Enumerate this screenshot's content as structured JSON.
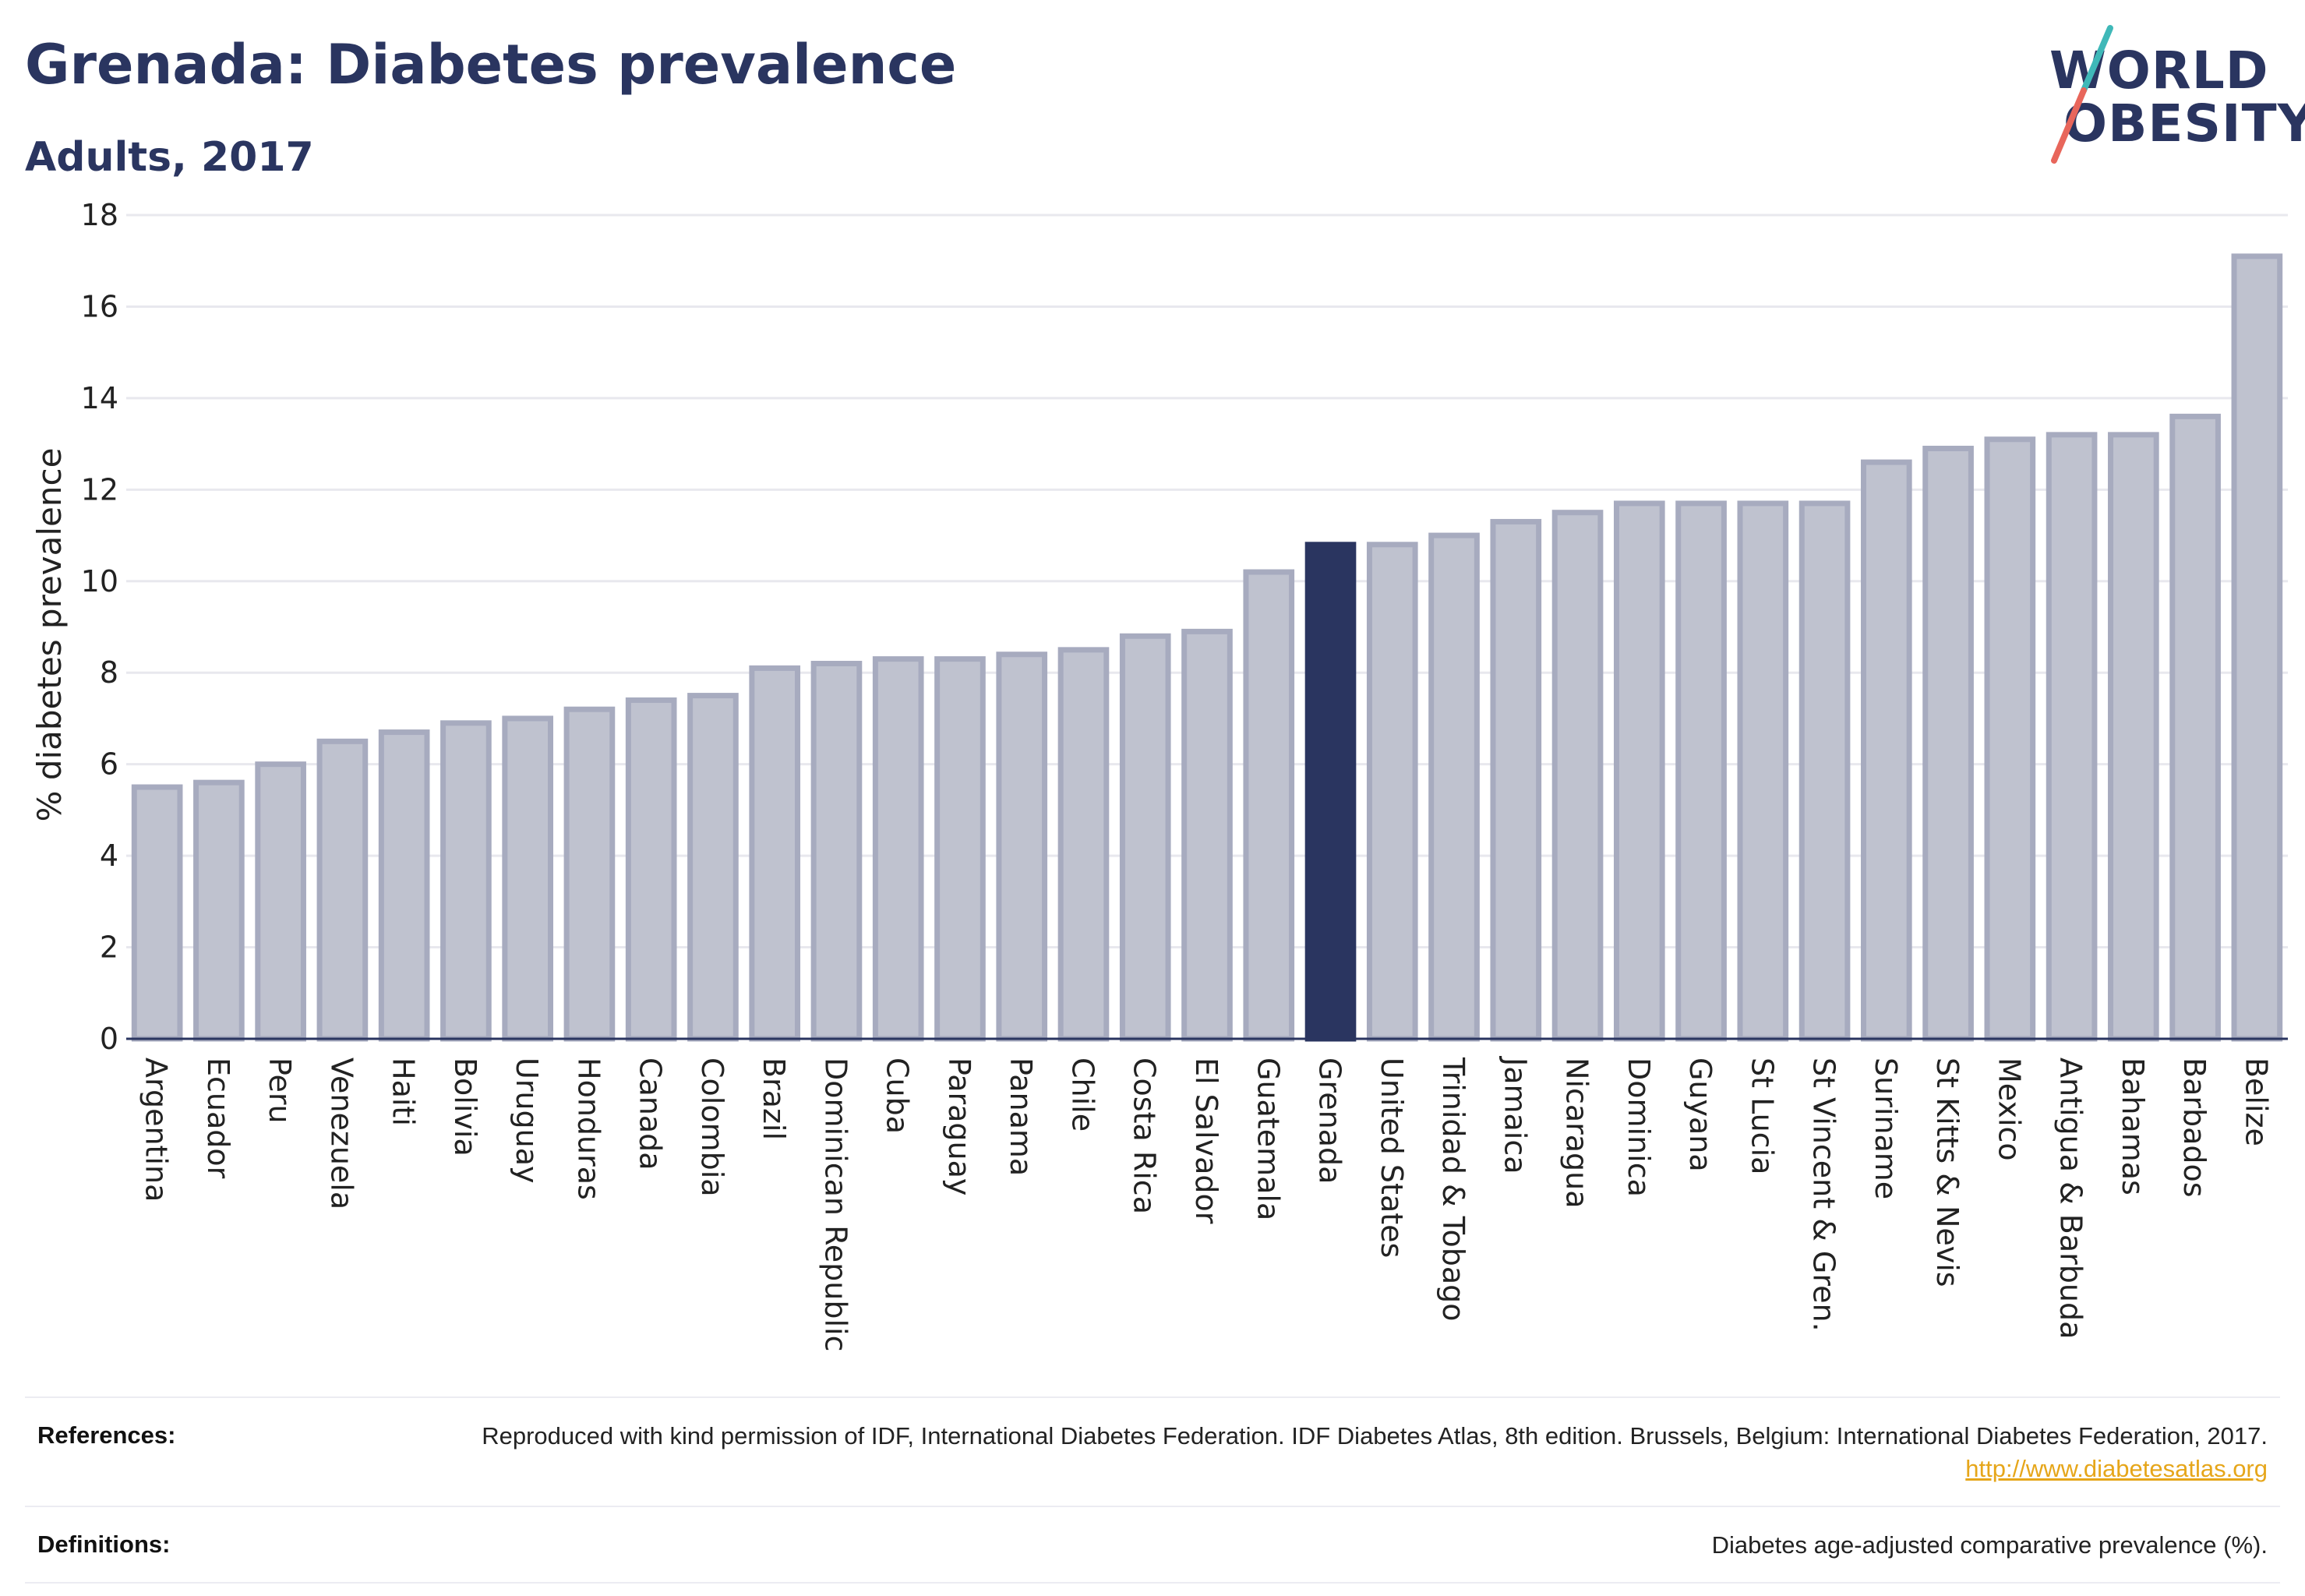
{
  "title": "Grenada: Diabetes prevalence",
  "subtitle": "Adults, 2017",
  "logo": {
    "text_line1": "WORLD",
    "text_line2": "OBESITY"
  },
  "colors": {
    "bar_default": "#bfc2cf",
    "bar_border": "#a7abbf",
    "bar_highlight": "#2a3560",
    "title": "#2a3560",
    "link": "#e6a61a",
    "logo_slash_teal": "#3fb8b8",
    "logo_slash_red": "#e8665b"
  },
  "chart_data": {
    "type": "bar",
    "title": "Grenada: Diabetes prevalence",
    "subtitle": "Adults, 2017",
    "xlabel": "",
    "ylabel": "% diabetes prevalence",
    "ylim": [
      0,
      18
    ],
    "yticks": [
      0,
      2,
      4,
      6,
      8,
      10,
      12,
      14,
      16,
      18
    ],
    "grid": true,
    "highlight": "Grenada",
    "categories": [
      "Argentina",
      "Ecuador",
      "Peru",
      "Venezuela",
      "Haiti",
      "Bolivia",
      "Uruguay",
      "Honduras",
      "Canada",
      "Colombia",
      "Brazil",
      "Dominican Republic",
      "Cuba",
      "Paraguay",
      "Panama",
      "Chile",
      "Costa Rica",
      "El Salvador",
      "Guatemala",
      "Grenada",
      "United States",
      "Trinidad & Tobago",
      "Jamaica",
      "Nicaragua",
      "Dominica",
      "Guyana",
      "St Lucia",
      "St Vincent & Gren.",
      "Suriname",
      "St Kitts & Nevis",
      "Mexico",
      "Antigua & Barbuda",
      "Bahamas",
      "Barbados",
      "Belize"
    ],
    "values": [
      5.5,
      5.6,
      6.0,
      6.5,
      6.7,
      6.9,
      7.0,
      7.2,
      7.4,
      7.5,
      8.1,
      8.2,
      8.3,
      8.3,
      8.4,
      8.5,
      8.8,
      8.9,
      10.2,
      10.8,
      10.8,
      11.0,
      11.3,
      11.5,
      11.7,
      11.7,
      11.7,
      11.7,
      12.6,
      12.9,
      13.1,
      13.2,
      13.2,
      13.6,
      17.1
    ]
  },
  "references": {
    "label": "References:",
    "text": "Reproduced with kind permission of IDF, International Diabetes Federation. IDF Diabetes Atlas, 8th edition. Brussels, Belgium: International Diabetes Federation, 2017.",
    "link": "http://www.diabetesatlas.org"
  },
  "definitions": {
    "label": "Definitions:",
    "text": "Diabetes age-adjusted comparative prevalence (%)."
  }
}
